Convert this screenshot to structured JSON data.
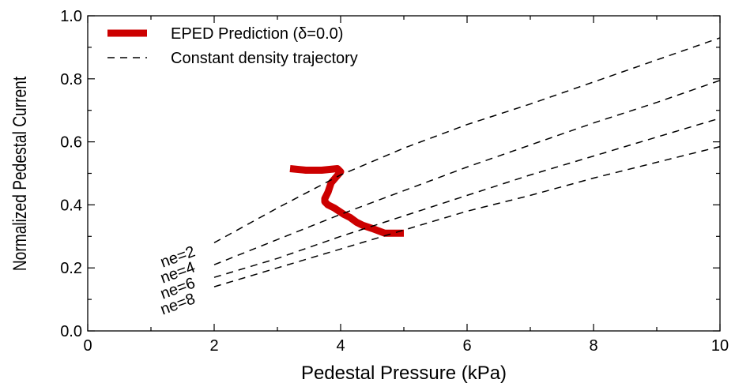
{
  "chart_data": {
    "type": "line",
    "title": "",
    "xlabel": "Pedestal Pressure (kPa)",
    "ylabel": "Normalized Pedestal Current",
    "xlim": [
      0,
      10
    ],
    "ylim": [
      0,
      1.0
    ],
    "x_ticks": [
      "0",
      "2",
      "4",
      "6",
      "8",
      "10"
    ],
    "y_ticks": [
      "0.0",
      "0.2",
      "0.4",
      "0.6",
      "0.8",
      "1.0"
    ],
    "grid": false,
    "legend_position": "top-left",
    "legend": [
      {
        "label": "EPED Prediction (δ=0.0)",
        "style": "thick-solid",
        "color": "#cc0000"
      },
      {
        "label": "Constant density trajectory",
        "style": "dashed",
        "color": "#000000"
      }
    ],
    "series": [
      {
        "name": "EPED Prediction (δ=0.0)",
        "color": "#cc0000",
        "style": "thick-solid",
        "x": [
          3.2,
          3.45,
          3.7,
          3.95,
          4.0,
          3.85,
          3.8,
          3.75,
          3.75,
          3.8,
          3.9,
          4.05,
          4.15,
          4.25,
          4.35,
          4.5,
          4.7,
          5.0
        ],
        "y": [
          0.515,
          0.51,
          0.51,
          0.515,
          0.505,
          0.47,
          0.44,
          0.42,
          0.41,
          0.4,
          0.39,
          0.37,
          0.36,
          0.345,
          0.335,
          0.325,
          0.31,
          0.31
        ]
      },
      {
        "name": "ne=2",
        "color": "#000000",
        "style": "dashed",
        "x": [
          2.0,
          3.0,
          4.0,
          5.0,
          6.0,
          7.0,
          8.0,
          9.0,
          10.0
        ],
        "y": [
          0.28,
          0.39,
          0.495,
          0.58,
          0.655,
          0.72,
          0.79,
          0.86,
          0.93
        ]
      },
      {
        "name": "ne=4",
        "color": "#000000",
        "style": "dashed",
        "x": [
          2.0,
          3.0,
          4.0,
          5.0,
          6.0,
          7.0,
          8.0,
          9.0,
          10.0
        ],
        "y": [
          0.21,
          0.29,
          0.37,
          0.445,
          0.52,
          0.59,
          0.66,
          0.725,
          0.795
        ]
      },
      {
        "name": "ne=6",
        "color": "#000000",
        "style": "dashed",
        "x": [
          2.0,
          3.0,
          4.0,
          5.0,
          6.0,
          7.0,
          8.0,
          9.0,
          10.0
        ],
        "y": [
          0.17,
          0.23,
          0.3,
          0.365,
          0.43,
          0.495,
          0.555,
          0.615,
          0.675
        ]
      },
      {
        "name": "ne=8",
        "color": "#000000",
        "style": "dashed",
        "x": [
          2.0,
          3.0,
          4.0,
          5.0,
          6.0,
          7.0,
          8.0,
          9.0,
          10.0
        ],
        "y": [
          0.14,
          0.2,
          0.26,
          0.32,
          0.38,
          0.43,
          0.485,
          0.535,
          0.585
        ]
      }
    ],
    "annotations": [
      {
        "text": "ne=2",
        "x": 1.45,
        "y": 0.22
      },
      {
        "text": "ne=4",
        "x": 1.45,
        "y": 0.17
      },
      {
        "text": "ne=6",
        "x": 1.45,
        "y": 0.12
      },
      {
        "text": "ne=8",
        "x": 1.45,
        "y": 0.07
      }
    ]
  }
}
